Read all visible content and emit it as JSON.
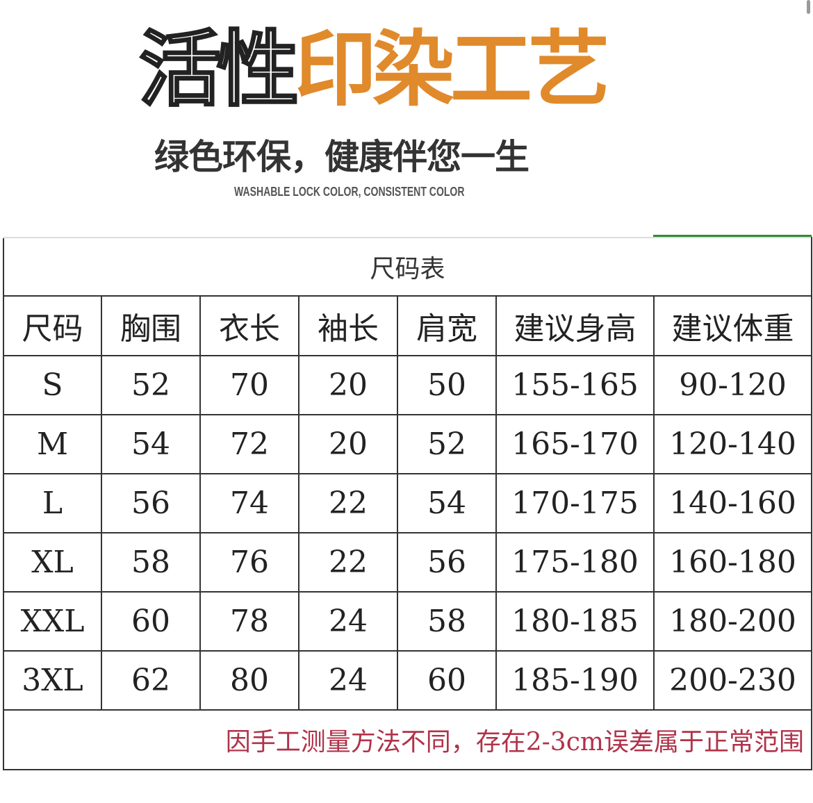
{
  "banner": {
    "title_outline": "活性",
    "title_accent": "印染工艺",
    "slogan": "绿色环保，健康伴您一生",
    "subtitle_en": "WASHABLE LOCK COLOR, CONSISTENT COLOR",
    "accent_color": "#e08a2c"
  },
  "size_table": {
    "caption": "尺码表",
    "headers": [
      "尺码",
      "胸围",
      "衣长",
      "袖长",
      "肩宽",
      "建议身高",
      "建议体重"
    ],
    "rows": [
      [
        "S",
        "52",
        "70",
        "20",
        "50",
        "155-165",
        "90-120"
      ],
      [
        "M",
        "54",
        "72",
        "20",
        "52",
        "165-170",
        "120-140"
      ],
      [
        "L",
        "56",
        "74",
        "22",
        "54",
        "170-175",
        "140-160"
      ],
      [
        "XL",
        "58",
        "76",
        "22",
        "56",
        "175-180",
        "160-180"
      ],
      [
        "XXL",
        "60",
        "78",
        "24",
        "58",
        "180-185",
        "180-200"
      ],
      [
        "3XL",
        "62",
        "80",
        "24",
        "60",
        "185-190",
        "200-230"
      ]
    ],
    "note": "因手工测量方法不同，存在2-3cm误差属于正常范围",
    "note_color": "#b0324a"
  }
}
